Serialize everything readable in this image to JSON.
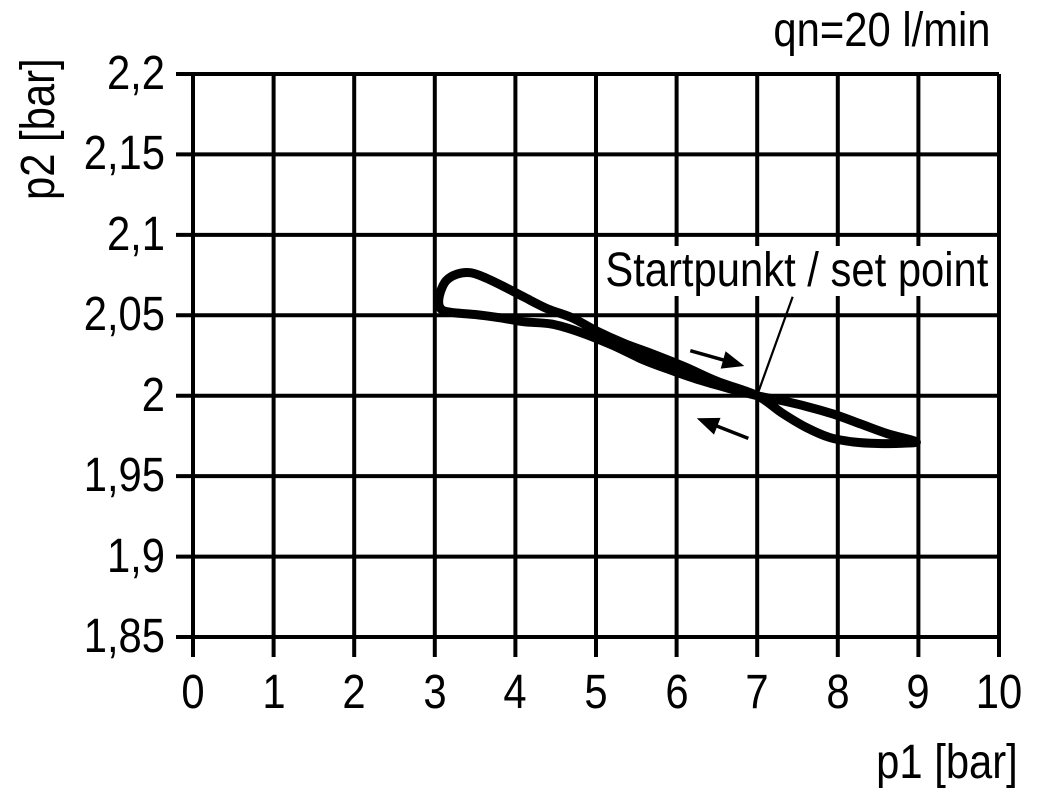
{
  "colors": {
    "foreground": "#000000",
    "background": "#ffffff"
  },
  "chart_data": {
    "type": "line",
    "flow_label": "qn=20 l/min",
    "xlabel": "p1 [bar]",
    "ylabel": "p2 [bar]",
    "annotation": "Startpunkt / set point",
    "grid": true,
    "xlim": [
      0,
      10
    ],
    "ylim": [
      1.85,
      2.2
    ],
    "x_ticks": {
      "values": [
        0,
        1,
        2,
        3,
        4,
        5,
        6,
        7,
        8,
        9,
        10
      ],
      "labels": [
        "0",
        "1",
        "2",
        "3",
        "4",
        "5",
        "6",
        "7",
        "8",
        "9",
        "10"
      ]
    },
    "y_ticks": {
      "values": [
        2.2,
        2.15,
        2.1,
        2.05,
        2.0,
        1.95,
        1.9,
        1.85
      ],
      "labels": [
        "2,2",
        "2,15",
        "2,1",
        "2,05",
        "2",
        "1,95",
        "1,9",
        "1,85"
      ]
    },
    "set_point": {
      "p1": 7,
      "p2": 2.0
    },
    "series": [
      {
        "name": "hysteresis-loop",
        "closed": true,
        "points": [
          [
            3.05,
            2.057
          ],
          [
            3.07,
            2.0645
          ],
          [
            3.14,
            2.0715
          ],
          [
            3.27,
            2.0755
          ],
          [
            3.44,
            2.0765
          ],
          [
            3.62,
            2.0735
          ],
          [
            3.85,
            2.068
          ],
          [
            4.1,
            2.0615
          ],
          [
            4.4,
            2.054
          ],
          [
            4.7,
            2.0485
          ],
          [
            5.0,
            2.0405
          ],
          [
            5.35,
            2.0325
          ],
          [
            5.7,
            2.026
          ],
          [
            6.1,
            2.018
          ],
          [
            6.5,
            2.009
          ],
          [
            7.0,
            2.0
          ],
          [
            7.3,
            1.9895
          ],
          [
            7.6,
            1.9805
          ],
          [
            7.9,
            1.974
          ],
          [
            8.2,
            1.9712
          ],
          [
            8.5,
            1.9703
          ],
          [
            8.8,
            1.9705
          ],
          [
            8.97,
            1.9715
          ],
          [
            8.62,
            1.9763
          ],
          [
            8.28,
            1.9825
          ],
          [
            7.95,
            1.9885
          ],
          [
            7.6,
            1.9935
          ],
          [
            7.3,
            1.997
          ],
          [
            7.0,
            2.0
          ],
          [
            6.65,
            2.0045
          ],
          [
            6.3,
            2.0095
          ],
          [
            5.95,
            2.0155
          ],
          [
            5.6,
            2.022
          ],
          [
            5.2,
            2.0315
          ],
          [
            4.8,
            2.0395
          ],
          [
            4.45,
            2.0445
          ],
          [
            4.1,
            2.046
          ],
          [
            3.8,
            2.0485
          ],
          [
            3.5,
            2.0505
          ],
          [
            3.25,
            2.0515
          ],
          [
            3.1,
            2.053
          ]
        ]
      }
    ],
    "arrows": [
      {
        "name": "forward-direction",
        "from": [
          6.17,
          2.028
        ],
        "to": [
          6.84,
          2.0185
        ]
      },
      {
        "name": "return-direction",
        "from": [
          6.89,
          1.9735
        ],
        "to": [
          6.25,
          1.986
        ]
      }
    ],
    "leader_line": {
      "from": [
        7.44,
        2.0615
      ],
      "to": [
        6.99,
        1.999
      ]
    }
  }
}
